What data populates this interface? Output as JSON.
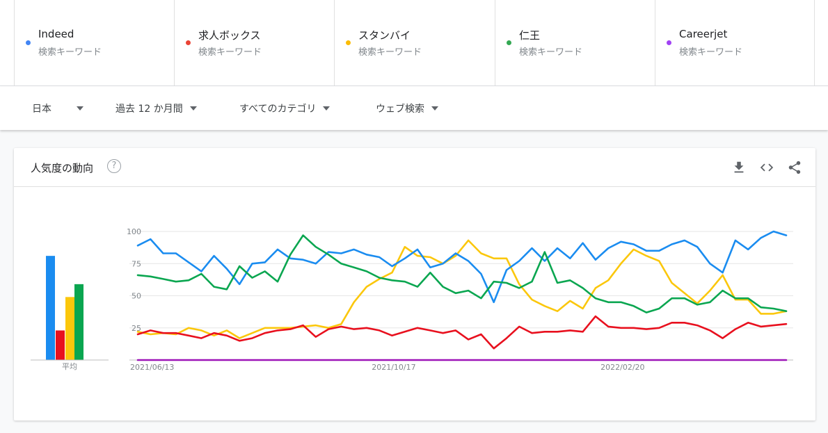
{
  "terms": [
    {
      "name": "Indeed",
      "sub": "検索キーワード",
      "color": "#4285f4"
    },
    {
      "name": "求人ボックス",
      "sub": "検索キーワード",
      "color": "#ea4335"
    },
    {
      "name": "スタンバイ",
      "sub": "検索キーワード",
      "color": "#fbbc04"
    },
    {
      "name": "仁王",
      "sub": "検索キーワード",
      "color": "#34a853"
    },
    {
      "name": "Careerjet",
      "sub": "検索キーワード",
      "color": "#a142f4"
    }
  ],
  "filters": {
    "region": "日本",
    "period": "過去 12 か月間",
    "category": "すべてのカテゴリ",
    "search_type": "ウェブ検索"
  },
  "card": {
    "title": "人気度の動向",
    "help_symbol": "?",
    "tools": [
      "download-icon",
      "embed-code-icon",
      "share-icon"
    ]
  },
  "chart_data": {
    "type": "line",
    "title": "",
    "ylim": [
      0,
      100
    ],
    "yticks": [
      25,
      50,
      75,
      100
    ],
    "grid": true,
    "x_tick_labels": [
      {
        "index": 0,
        "label": "2021/06/13"
      },
      {
        "index": 19,
        "label": "2021/10/17"
      },
      {
        "index": 37,
        "label": "2022/02/20"
      }
    ],
    "series": [
      {
        "name": "Indeed",
        "color": "#1a8cf0",
        "values": [
          89,
          94,
          83,
          83,
          76,
          69,
          81,
          71,
          59,
          75,
          76,
          86,
          79,
          78,
          75,
          84,
          83,
          86,
          82,
          80,
          73,
          79,
          86,
          72,
          75,
          83,
          77,
          67,
          45,
          70,
          77,
          87,
          77,
          87,
          79,
          91,
          78,
          87,
          92,
          90,
          85,
          85,
          90,
          93,
          88,
          75,
          68,
          93,
          86,
          95,
          100,
          97
        ]
      },
      {
        "name": "求人ボックス",
        "color": "#e8101e",
        "values": [
          20,
          23,
          21,
          21,
          19,
          17,
          21,
          19,
          15,
          17,
          21,
          23,
          24,
          27,
          18,
          24,
          26,
          24,
          25,
          23,
          19,
          22,
          25,
          23,
          21,
          23,
          16,
          20,
          9,
          17,
          26,
          21,
          22,
          22,
          23,
          22,
          34,
          26,
          25,
          25,
          24,
          25,
          29,
          29,
          27,
          23,
          17,
          24,
          29,
          26,
          27,
          28
        ]
      },
      {
        "name": "スタンバイ",
        "color": "#fbc70c",
        "values": [
          22,
          20,
          21,
          20,
          25,
          23,
          19,
          23,
          17,
          21,
          25,
          25,
          25,
          26,
          27,
          25,
          28,
          45,
          57,
          63,
          68,
          88,
          81,
          80,
          75,
          81,
          93,
          83,
          79,
          79,
          59,
          47,
          42,
          38,
          46,
          40,
          56,
          62,
          75,
          86,
          81,
          77,
          60,
          52,
          44,
          54,
          66,
          47,
          47,
          36,
          36,
          38
        ]
      },
      {
        "name": "仁王",
        "color": "#0aa650",
        "values": [
          66,
          65,
          63,
          61,
          62,
          67,
          57,
          55,
          73,
          64,
          69,
          61,
          82,
          97,
          88,
          82,
          75,
          72,
          69,
          64,
          62,
          61,
          57,
          68,
          57,
          52,
          54,
          48,
          61,
          60,
          56,
          61,
          84,
          60,
          62,
          56,
          48,
          45,
          45,
          42,
          37,
          40,
          48,
          48,
          43,
          45,
          54,
          48,
          48,
          41,
          40,
          38
        ]
      },
      {
        "name": "Careerjet",
        "color": "#9d14b7",
        "values": [
          0,
          0,
          0,
          0,
          0,
          0,
          0,
          0,
          0,
          0,
          0,
          0,
          0,
          0,
          0,
          0,
          0,
          0,
          0,
          0,
          0,
          0,
          0,
          0,
          0,
          0,
          0,
          0,
          0,
          0,
          0,
          0,
          0,
          0,
          0,
          0,
          0,
          0,
          0,
          0,
          0,
          0,
          0,
          0,
          0,
          0,
          0,
          0,
          0,
          0,
          0,
          0
        ]
      }
    ],
    "average": {
      "label": "平均",
      "bars": [
        {
          "name": "Indeed",
          "value": 81,
          "color": "#1a8cf0"
        },
        {
          "name": "求人ボックス",
          "value": 23,
          "color": "#e8101e"
        },
        {
          "name": "スタンバイ",
          "value": 49,
          "color": "#fbc70c"
        },
        {
          "name": "仁王",
          "value": 59,
          "color": "#0aa650"
        },
        {
          "name": "Careerjet",
          "value": 0,
          "color": "#9d14b7"
        }
      ]
    }
  }
}
